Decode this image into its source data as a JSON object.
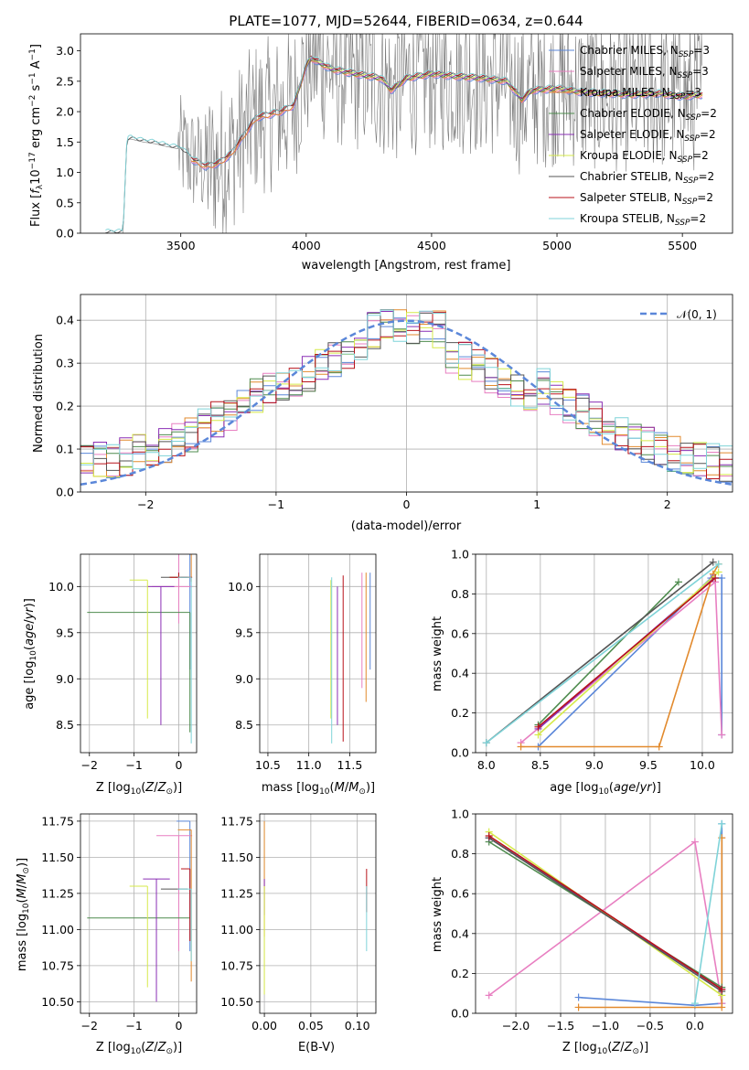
{
  "colors": {
    "chabrier_miles": "#5b87d9",
    "salpeter_miles": "#e87fc1",
    "kroupa_miles": "#e28a2d",
    "chabrier_elodie": "#4f8c4f",
    "salpeter_elodie": "#8a2fb5",
    "kroupa_elodie": "#d6ea4a",
    "chabrier_stelib": "#555555",
    "salpeter_stelib": "#b8131b",
    "kroupa_stelib": "#7fd3d8",
    "normal": "#5b87d9"
  },
  "chart_data": [
    {
      "id": "spectrum",
      "type": "line",
      "title": "PLATE=1077, MJD=52644, FIBERID=0634, z=0.644",
      "xlabel": "wavelength [Angstrom, rest frame]",
      "ylabel": "Flux [f_λ 10^-17 erg cm^-2 s^-1 A^-1]",
      "xlim": [
        3100,
        5700
      ],
      "ylim": [
        0,
        3.28
      ],
      "xticks": [
        3500,
        4000,
        4500,
        5000,
        5500
      ],
      "yticks": [
        0.0,
        0.5,
        1.0,
        1.5,
        2.0,
        2.5,
        3.0
      ],
      "legend_position": "top-right",
      "legend": [
        {
          "main": "Chabrier MILES, N",
          "sub": "SSP",
          "tail": "=3",
          "color_key": "chabrier_miles"
        },
        {
          "main": "Salpeter MILES, N",
          "sub": "SSP",
          "tail": "=3",
          "color_key": "salpeter_miles"
        },
        {
          "main": "Kroupa MILES, N",
          "sub": "SSP",
          "tail": "=3",
          "color_key": "kroupa_miles"
        },
        {
          "main": "Chabrier ELODIE, N",
          "sub": "SSP",
          "tail": "=2",
          "color_key": "chabrier_elodie"
        },
        {
          "main": "Salpeter ELODIE, N",
          "sub": "SSP",
          "tail": "=2",
          "color_key": "salpeter_elodie"
        },
        {
          "main": "Kroupa ELODIE, N",
          "sub": "SSP",
          "tail": "=2",
          "color_key": "kroupa_elodie"
        },
        {
          "main": "Chabrier STELIB, N",
          "sub": "SSP",
          "tail": "=2",
          "color_key": "chabrier_stelib"
        },
        {
          "main": "Salpeter STELIB, N",
          "sub": "SSP",
          "tail": "=2",
          "color_key": "salpeter_stelib"
        },
        {
          "main": "Kroupa STELIB, N",
          "sub": "SSP",
          "tail": "=2",
          "color_key": "kroupa_stelib"
        }
      ],
      "model_continuum": [
        [
          3200,
          0
        ],
        [
          3270,
          0
        ],
        [
          3285,
          1.53
        ],
        [
          3300,
          1.55
        ],
        [
          3350,
          1.5
        ],
        [
          3400,
          1.47
        ],
        [
          3450,
          1.42
        ],
        [
          3500,
          1.38
        ],
        [
          3550,
          1.2
        ],
        [
          3600,
          1.1
        ],
        [
          3650,
          1.15
        ],
        [
          3700,
          1.3
        ],
        [
          3750,
          1.6
        ],
        [
          3800,
          1.9
        ],
        [
          3850,
          1.95
        ],
        [
          3900,
          2.0
        ],
        [
          3950,
          2.1
        ],
        [
          4000,
          2.75
        ],
        [
          4020,
          2.88
        ],
        [
          4100,
          2.7
        ],
        [
          4200,
          2.62
        ],
        [
          4300,
          2.55
        ],
        [
          4340,
          2.35
        ],
        [
          4400,
          2.55
        ],
        [
          4500,
          2.62
        ],
        [
          4600,
          2.58
        ],
        [
          4700,
          2.55
        ],
        [
          4800,
          2.5
        ],
        [
          4860,
          2.2
        ],
        [
          4900,
          2.35
        ],
        [
          5000,
          2.38
        ],
        [
          5100,
          2.32
        ],
        [
          5200,
          2.3
        ],
        [
          5300,
          2.28
        ],
        [
          5400,
          2.3
        ],
        [
          5500,
          2.25
        ],
        [
          5580,
          2.28
        ]
      ]
    },
    {
      "id": "residuals",
      "type": "line",
      "xlabel": "(data-model)/error",
      "ylabel": "Normed distribution",
      "xlim": [
        -2.5,
        2.5
      ],
      "ylim": [
        0,
        0.46
      ],
      "xticks": [
        -2,
        -1,
        0,
        1,
        2
      ],
      "yticks": [
        0.0,
        0.1,
        0.2,
        0.3,
        0.4
      ],
      "grid": true,
      "legend_position": "top-right",
      "legend": [
        {
          "label": "𝒩(0, 1)",
          "color_key": "normal"
        }
      ],
      "reference_curve": "normal pdf, mean 0, sigma 1"
    },
    {
      "id": "age_vs_Z",
      "type": "scatter",
      "xlabel": "Z [log10(Z/Z⊙)]",
      "ylabel": "age [log10(age/yr)]",
      "xlim": [
        -2.2,
        0.4
      ],
      "ylim": [
        8.2,
        10.35
      ],
      "xticks": [
        -2,
        -1,
        0
      ],
      "yticks": [
        8.5,
        9.0,
        9.5,
        10.0
      ],
      "grid": true,
      "series": [
        {
          "color_key": "chabrier_miles",
          "Z": 0.25,
          "age": 10.1,
          "age_err": [
            0.5,
            1.0
          ],
          "Z_err": [
            0.2,
            0.0
          ]
        },
        {
          "color_key": "salpeter_miles",
          "Z": 0.0,
          "age": 10.0,
          "age_err": [
            0.5,
            0.4
          ],
          "Z_err": [
            0.6,
            0.3
          ]
        },
        {
          "color_key": "kroupa_miles",
          "Z": 0.28,
          "age": 10.1,
          "age_err": [
            0.3,
            0.05
          ],
          "Z_err": [
            0.5,
            0.0
          ]
        },
        {
          "color_key": "chabrier_elodie",
          "Z": 0.25,
          "age": 9.72,
          "age_err": [
            0.0,
            1.3
          ],
          "Z_err": [
            2.3,
            0.0
          ]
        },
        {
          "color_key": "salpeter_elodie",
          "Z": -0.4,
          "age": 10.0,
          "age_err": [
            0.0,
            1.5
          ],
          "Z_err": [
            0.3,
            0.3
          ]
        },
        {
          "color_key": "kroupa_elodie",
          "Z": -0.7,
          "age": 10.07,
          "age_err": [
            0.0,
            1.5
          ],
          "Z_err": [
            0.4,
            0.0
          ]
        },
        {
          "color_key": "chabrier_stelib",
          "Z": 0.0,
          "age": 10.1,
          "age_err": [
            0.05,
            0.0
          ],
          "Z_err": [
            0.4,
            0.2
          ]
        },
        {
          "color_key": "salpeter_stelib",
          "Z": 0.0,
          "age": 10.1,
          "age_err": [
            0.05,
            0.0
          ],
          "Z_err": [
            0.2,
            0.3
          ]
        },
        {
          "color_key": "kroupa_stelib",
          "Z": 0.28,
          "age": 10.1,
          "age_err": [
            0.0,
            1.8
          ],
          "Z_err": [
            0.3,
            0.0
          ]
        }
      ]
    },
    {
      "id": "age_vs_mass",
      "type": "scatter",
      "xlabel": "mass [log10(M/M⊙)]",
      "ylabel": "",
      "xlim": [
        10.4,
        11.82
      ],
      "ylim": [
        8.2,
        10.35
      ],
      "xticks": [
        10.5,
        11.0,
        11.5
      ],
      "yticks": [
        8.5,
        9.0,
        9.5,
        10.0
      ],
      "grid": true,
      "series": [
        {
          "color_key": "chabrier_miles",
          "mass": 11.75,
          "age": 10.15,
          "age_err": [
            0.0,
            1.05
          ]
        },
        {
          "color_key": "salpeter_miles",
          "mass": 11.65,
          "age": 10.15,
          "age_err": [
            0.0,
            1.25
          ]
        },
        {
          "color_key": "kroupa_miles",
          "mass": 11.7,
          "age": 10.15,
          "age_err": [
            0.0,
            1.4
          ]
        },
        {
          "color_key": "chabrier_elodie",
          "mass": 11.08,
          "age": 9.72,
          "age_err": [
            0.0,
            0.0
          ]
        },
        {
          "color_key": "salpeter_elodie",
          "mass": 11.35,
          "age": 10.0,
          "age_err": [
            0.0,
            1.5
          ]
        },
        {
          "color_key": "kroupa_elodie",
          "mass": 11.27,
          "age": 10.07,
          "age_err": [
            0.0,
            1.5
          ]
        },
        {
          "color_key": "chabrier_stelib",
          "mass": 11.1,
          "age": 10.1,
          "age_err": [
            0.0,
            0.0
          ]
        },
        {
          "color_key": "salpeter_stelib",
          "mass": 11.42,
          "age": 10.12,
          "age_err": [
            0.0,
            1.8
          ]
        },
        {
          "color_key": "kroupa_stelib",
          "mass": 11.28,
          "age": 10.1,
          "age_err": [
            0.0,
            1.8
          ]
        }
      ]
    },
    {
      "id": "weight_vs_age",
      "type": "line",
      "xlabel": "age [log10(age/yr)]",
      "ylabel": "mass weight",
      "xlim": [
        7.9,
        10.28
      ],
      "ylim": [
        0,
        1.0
      ],
      "xticks": [
        8.0,
        8.5,
        9.0,
        9.5,
        10.0
      ],
      "yticks": [
        0.0,
        0.2,
        0.4,
        0.6,
        0.8,
        1.0
      ],
      "grid": true,
      "series": [
        {
          "color_key": "chabrier_miles",
          "points": [
            [
              8.48,
              0.03
            ],
            [
              10.08,
              0.88
            ],
            [
              10.18,
              0.88
            ],
            [
              10.18,
              0.09
            ]
          ]
        },
        {
          "color_key": "salpeter_miles",
          "points": [
            [
              8.32,
              0.05
            ],
            [
              10.12,
              0.86
            ],
            [
              10.18,
              0.09
            ]
          ]
        },
        {
          "color_key": "kroupa_miles",
          "points": [
            [
              8.32,
              0.03
            ],
            [
              9.6,
              0.03
            ],
            [
              10.1,
              0.9
            ],
            [
              10.15,
              0.95
            ]
          ]
        },
        {
          "color_key": "chabrier_elodie",
          "points": [
            [
              8.48,
              0.14
            ],
            [
              9.78,
              0.86
            ]
          ]
        },
        {
          "color_key": "salpeter_elodie",
          "points": [
            [
              8.48,
              0.12
            ],
            [
              10.1,
              0.88
            ]
          ]
        },
        {
          "color_key": "kroupa_elodie",
          "points": [
            [
              8.48,
              0.09
            ],
            [
              10.15,
              0.91
            ]
          ]
        },
        {
          "color_key": "chabrier_stelib",
          "points": [
            [
              8.0,
              0.05
            ],
            [
              10.1,
              0.96
            ]
          ]
        },
        {
          "color_key": "salpeter_stelib",
          "points": [
            [
              8.48,
              0.13
            ],
            [
              10.12,
              0.88
            ]
          ]
        },
        {
          "color_key": "kroupa_stelib",
          "points": [
            [
              8.0,
              0.05
            ],
            [
              10.15,
              0.95
            ]
          ]
        }
      ]
    },
    {
      "id": "mass_vs_Z",
      "type": "scatter",
      "xlabel": "Z [log10(Z/Z⊙)]",
      "ylabel": "mass [log10(M/M⊙)]",
      "xlim": [
        -2.2,
        0.4
      ],
      "ylim": [
        10.42,
        11.8
      ],
      "xticks": [
        -2,
        -1,
        0
      ],
      "yticks": [
        10.5,
        10.75,
        11.0,
        11.25,
        11.5,
        11.75
      ],
      "grid": true,
      "series": [
        {
          "color_key": "chabrier_miles",
          "Z": 0.25,
          "mass": 11.75,
          "mass_err": [
            0.0,
            0.9
          ],
          "Z_err": [
            0.3,
            0.0
          ]
        },
        {
          "color_key": "salpeter_miles",
          "Z": 0.0,
          "mass": 11.65,
          "mass_err": [
            0.0,
            0.8
          ],
          "Z_err": [
            0.5,
            0.3
          ]
        },
        {
          "color_key": "kroupa_miles",
          "Z": 0.28,
          "mass": 11.69,
          "mass_err": [
            0.0,
            1.05
          ],
          "Z_err": [
            0.3,
            0.0
          ]
        },
        {
          "color_key": "chabrier_elodie",
          "Z": 0.25,
          "mass": 11.08,
          "mass_err": [
            0.0,
            0.0
          ],
          "Z_err": [
            2.3,
            0.0
          ]
        },
        {
          "color_key": "salpeter_elodie",
          "Z": -0.5,
          "mass": 11.35,
          "mass_err": [
            0.0,
            0.85
          ],
          "Z_err": [
            0.3,
            0.3
          ]
        },
        {
          "color_key": "kroupa_elodie",
          "Z": -0.7,
          "mass": 11.3,
          "mass_err": [
            0.0,
            0.7
          ],
          "Z_err": [
            0.4,
            0.0
          ]
        },
        {
          "color_key": "chabrier_stelib",
          "Z": 0.0,
          "mass": 11.28,
          "mass_err": [
            0.0,
            0.0
          ],
          "Z_err": [
            0.4,
            0.2
          ]
        },
        {
          "color_key": "salpeter_stelib",
          "Z": 0.25,
          "mass": 11.42,
          "mass_err": [
            0.0,
            0.5
          ],
          "Z_err": [
            0.2,
            0.0
          ]
        },
        {
          "color_key": "kroupa_stelib",
          "Z": 0.28,
          "mass": 11.28,
          "mass_err": [
            0.0,
            0.5
          ],
          "Z_err": [
            0.3,
            0.0
          ]
        }
      ]
    },
    {
      "id": "mass_vs_ebv",
      "type": "scatter",
      "xlabel": "E(B-V)",
      "ylabel": "",
      "xlim": [
        -0.005,
        0.12
      ],
      "ylim": [
        10.42,
        11.8
      ],
      "xticks": [
        0.0,
        0.05,
        0.1
      ],
      "xtick_labels": [
        "0.00",
        "0.05",
        "0.10"
      ],
      "yticks": [
        10.5,
        10.75,
        11.0,
        11.25,
        11.5,
        11.75
      ],
      "grid": true,
      "series": [
        {
          "color_key": "kroupa_miles",
          "ebv": 0.0,
          "mass": 11.75,
          "mass_err": [
            0.0,
            0.8
          ]
        },
        {
          "color_key": "salpeter_elodie",
          "ebv": 0.0,
          "mass": 11.35,
          "mass_err": [
            0.0,
            0.25
          ]
        },
        {
          "color_key": "kroupa_elodie",
          "ebv": 0.0,
          "mass": 11.3,
          "mass_err": [
            0.0,
            0.75
          ]
        },
        {
          "color_key": "salpeter_stelib",
          "ebv": 0.11,
          "mass": 11.42,
          "mass_err": [
            0.0,
            0.3
          ]
        },
        {
          "color_key": "kroupa_stelib",
          "ebv": 0.11,
          "mass": 11.3,
          "mass_err": [
            0.0,
            0.45
          ]
        }
      ]
    },
    {
      "id": "weight_vs_Z",
      "type": "line",
      "xlabel": "Z [log10(Z/Z⊙)]",
      "ylabel": "mass weight",
      "xlim": [
        -2.45,
        0.42
      ],
      "ylim": [
        0,
        1.0
      ],
      "xticks": [
        -2.0,
        -1.5,
        -1.0,
        -0.5,
        0.0
      ],
      "yticks": [
        0.0,
        0.2,
        0.4,
        0.6,
        0.8,
        1.0
      ],
      "grid": true,
      "series": [
        {
          "color_key": "chabrier_miles",
          "points": [
            [
              -1.3,
              0.08
            ],
            [
              0.0,
              0.04
            ],
            [
              0.3,
              0.05
            ],
            [
              0.3,
              0.95
            ]
          ]
        },
        {
          "color_key": "salpeter_miles",
          "points": [
            [
              -2.3,
              0.09
            ],
            [
              0.0,
              0.86
            ],
            [
              0.3,
              0.05
            ]
          ]
        },
        {
          "color_key": "kroupa_miles",
          "points": [
            [
              -1.3,
              0.03
            ],
            [
              0.3,
              0.03
            ],
            [
              0.3,
              0.88
            ]
          ]
        },
        {
          "color_key": "chabrier_elodie",
          "points": [
            [
              -2.3,
              0.86
            ],
            [
              0.3,
              0.13
            ]
          ]
        },
        {
          "color_key": "salpeter_elodie",
          "points": [
            [
              -2.3,
              0.88
            ],
            [
              0.3,
              0.12
            ]
          ]
        },
        {
          "color_key": "kroupa_elodie",
          "points": [
            [
              -2.3,
              0.91
            ],
            [
              0.3,
              0.09
            ]
          ]
        },
        {
          "color_key": "chabrier_stelib",
          "points": [
            [
              -2.3,
              0.88
            ],
            [
              0.3,
              0.11
            ]
          ]
        },
        {
          "color_key": "salpeter_stelib",
          "points": [
            [
              -2.3,
              0.89
            ],
            [
              0.3,
              0.12
            ]
          ]
        },
        {
          "color_key": "kroupa_stelib",
          "points": [
            [
              0.0,
              0.05
            ],
            [
              0.3,
              0.95
            ]
          ]
        }
      ]
    }
  ]
}
